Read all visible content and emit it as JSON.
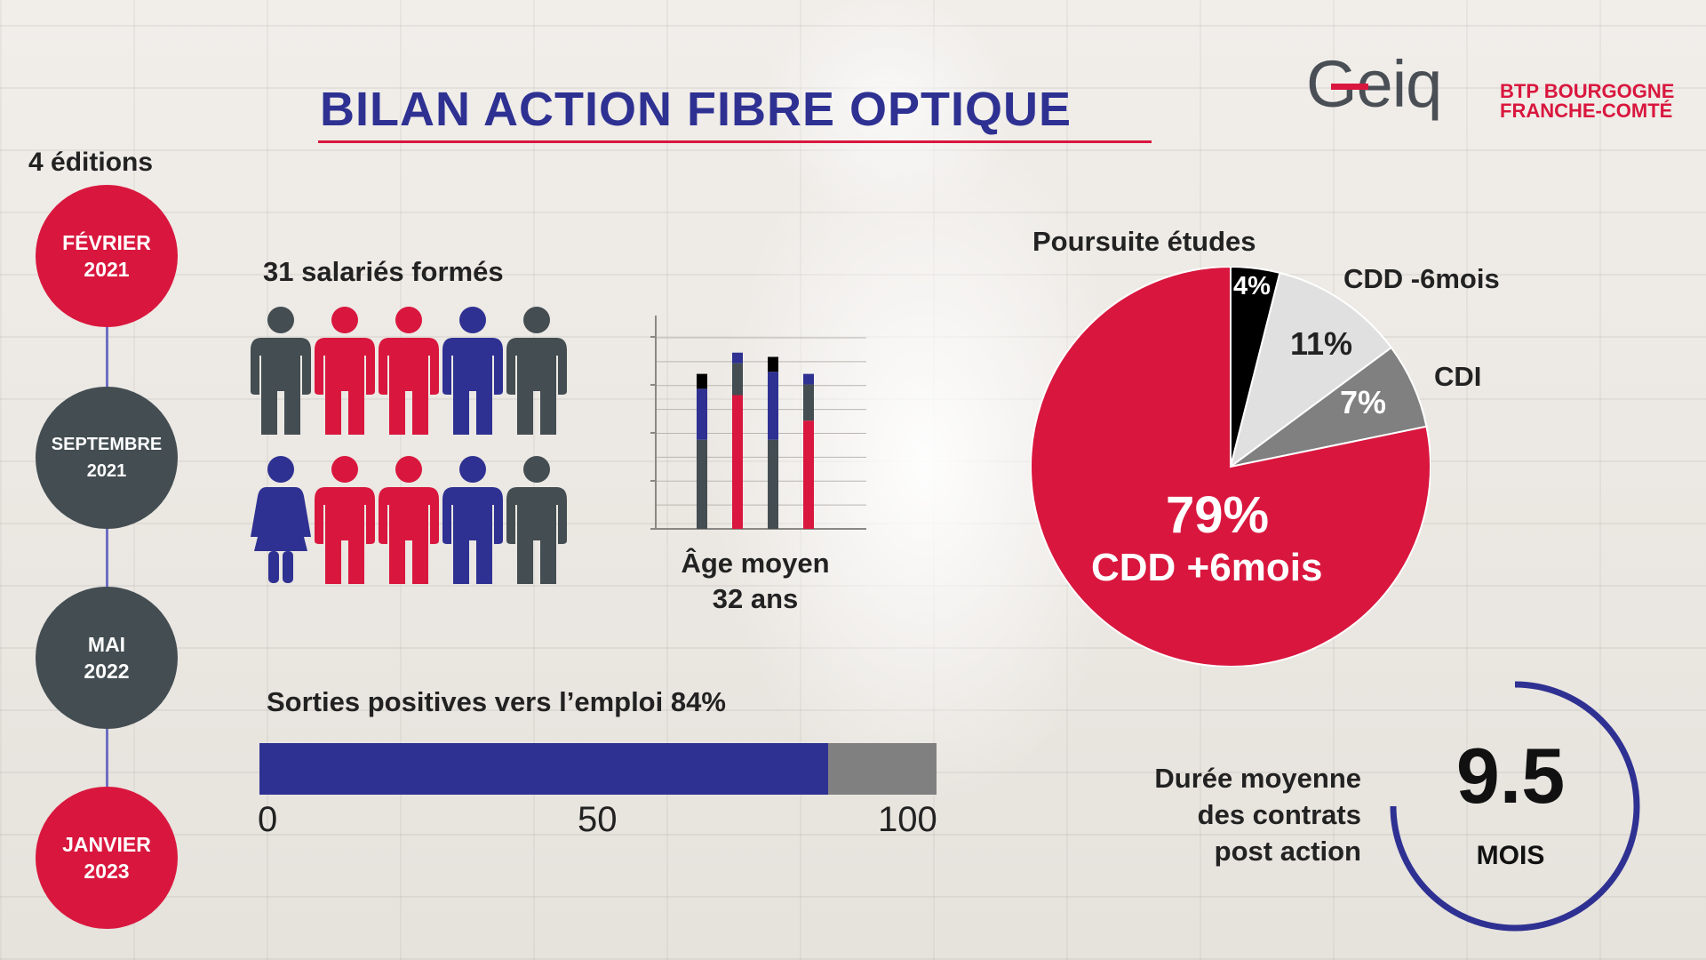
{
  "title": "BILAN ACTION FIBRE OPTIQUE",
  "logo": {
    "wordmark": "Geiq",
    "line1": "BTP BOURGOGNE",
    "line2": "FRANCHE-COMTÉ"
  },
  "colors": {
    "red": "#d9173e",
    "blue": "#2e3192",
    "dark_gray": "#434d52",
    "mid_gray": "#808080",
    "light_gray": "#e0e0e0",
    "black": "#000000"
  },
  "timeline": {
    "heading": "4 éditions",
    "editions": [
      {
        "month": "FÉVRIER",
        "year": "2021",
        "color": "#d9173e"
      },
      {
        "month": "SEPTEMBRE",
        "year": "2021",
        "color": "#434d52"
      },
      {
        "month": "MAI",
        "year": "2022",
        "color": "#434d52"
      },
      {
        "month": "JANVIER",
        "year": "2023",
        "color": "#d9173e"
      }
    ]
  },
  "people": {
    "heading": "31 salariés formés",
    "rows": [
      [
        "male-gray",
        "male-red",
        "male-red",
        "male-blue",
        "male-gray"
      ],
      [
        "female-blue",
        "male-red",
        "male-red",
        "male-blue",
        "male-gray"
      ]
    ]
  },
  "age": {
    "line1": "Âge moyen",
    "line2": "32 ans"
  },
  "exits": {
    "label": "Sorties positives vers l’emploi 84%",
    "percent": 84,
    "axis_ticks": [
      "0",
      "50",
      "100"
    ]
  },
  "duration": {
    "line1": "Durée moyenne",
    "line2": "des contrats",
    "line3": "post action",
    "value": "9.5",
    "unit": "MOIS"
  },
  "chart_data": [
    {
      "type": "bar",
      "stacked": true,
      "categories": [
        "1",
        "2",
        "3",
        "4"
      ],
      "series": [
        {
          "color": "#434d52",
          "values": [
            42,
            0,
            42,
            0
          ]
        },
        {
          "color": "#d9173e",
          "values": [
            0,
            63,
            0,
            51
          ]
        },
        {
          "color": "#2e3192",
          "values": [
            24,
            0,
            32,
            0
          ]
        },
        {
          "color": "#434d52",
          "values": [
            0,
            15,
            0,
            17
          ]
        },
        {
          "color": "#000000",
          "values": [
            7,
            0,
            7,
            0
          ]
        },
        {
          "color": "#2e3192",
          "values": [
            0,
            5,
            0,
            5
          ]
        }
      ],
      "ylim": [
        0,
        90
      ],
      "grid": true,
      "xlabel": "",
      "ylabel": "",
      "title": ""
    },
    {
      "type": "pie",
      "title": "",
      "slices": [
        {
          "label": "Poursuite études",
          "value": 4,
          "text": "4%",
          "color": "#000000"
        },
        {
          "label": "CDD -6mois",
          "value": 11,
          "text": "11%",
          "color": "#e0e0e0"
        },
        {
          "label": "CDI",
          "value": 7,
          "text": "7%",
          "color": "#808080"
        },
        {
          "label": "CDD +6mois",
          "value": 79,
          "text": "79%",
          "color": "#d9173e"
        }
      ]
    },
    {
      "type": "bar",
      "orientation": "horizontal",
      "values": [
        84
      ],
      "xlim": [
        0,
        100
      ],
      "xticks": [
        0,
        50,
        100
      ]
    }
  ]
}
